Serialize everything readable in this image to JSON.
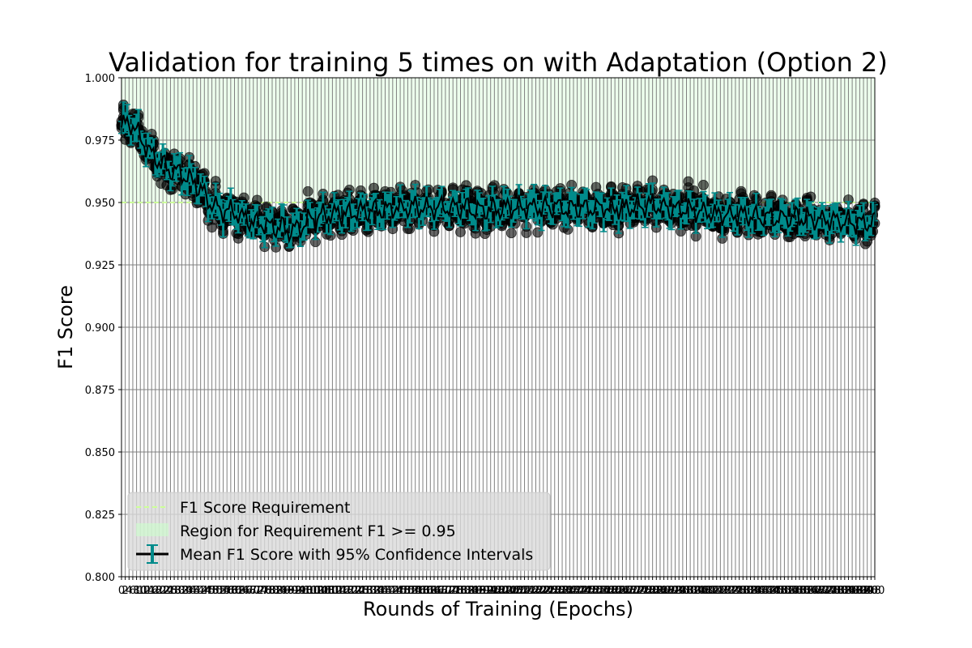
{
  "chart_data": {
    "type": "scatter",
    "title": "Validation for training 5 times on with Adaptation (Option 2)",
    "xlabel": "Rounds of Training (Epochs)",
    "ylabel": "F1 Score",
    "xlim": [
      0,
      400
    ],
    "ylim": [
      0.8,
      1.0
    ],
    "yticks": [
      0.8,
      0.825,
      0.85,
      0.875,
      0.9,
      0.925,
      0.95,
      0.975,
      1.0
    ],
    "ytick_labels": [
      "0.800",
      "0.825",
      "0.850",
      "0.875",
      "0.900",
      "0.925",
      "0.950",
      "0.975",
      "1.000"
    ],
    "xtick_step": 2,
    "grid": true,
    "legend_position": "lower-left",
    "requirement": {
      "name": "F1 Score Requirement",
      "value": 0.95,
      "color": "#ccff99"
    },
    "region": {
      "name": "Region for Requirement F1 >= 0.95",
      "from": 0.95,
      "to": 1.0,
      "color": "#ccffcc"
    },
    "mean_series": {
      "name": "Mean F1 Score with 95% Confidence Intervals",
      "line_color": "#000000",
      "ci_color": "#008b8b",
      "anchors": [
        [
          0,
          0.98
        ],
        [
          5,
          0.982
        ],
        [
          10,
          0.976
        ],
        [
          15,
          0.97
        ],
        [
          20,
          0.967
        ],
        [
          25,
          0.963
        ],
        [
          30,
          0.962
        ],
        [
          35,
          0.96
        ],
        [
          40,
          0.957
        ],
        [
          45,
          0.952
        ],
        [
          50,
          0.948
        ],
        [
          55,
          0.947
        ],
        [
          60,
          0.946
        ],
        [
          65,
          0.944
        ],
        [
          70,
          0.942
        ],
        [
          75,
          0.941
        ],
        [
          80,
          0.94
        ],
        [
          85,
          0.94
        ],
        [
          90,
          0.939
        ],
        [
          95,
          0.94
        ],
        [
          100,
          0.943
        ],
        [
          110,
          0.945
        ],
        [
          120,
          0.946
        ],
        [
          130,
          0.947
        ],
        [
          140,
          0.947
        ],
        [
          150,
          0.948
        ],
        [
          160,
          0.948
        ],
        [
          170,
          0.948
        ],
        [
          180,
          0.948
        ],
        [
          190,
          0.947
        ],
        [
          200,
          0.947
        ],
        [
          210,
          0.948
        ],
        [
          220,
          0.948
        ],
        [
          230,
          0.948
        ],
        [
          240,
          0.948
        ],
        [
          250,
          0.948
        ],
        [
          260,
          0.948
        ],
        [
          270,
          0.948
        ],
        [
          280,
          0.949
        ],
        [
          290,
          0.948
        ],
        [
          300,
          0.947
        ],
        [
          310,
          0.946
        ],
        [
          320,
          0.945
        ],
        [
          330,
          0.945
        ],
        [
          340,
          0.944
        ],
        [
          350,
          0.944
        ],
        [
          360,
          0.944
        ],
        [
          370,
          0.943
        ],
        [
          380,
          0.943
        ],
        [
          390,
          0.942
        ],
        [
          400,
          0.942
        ]
      ],
      "ci_half_width": 0.004
    },
    "runs": {
      "count": 5,
      "point_color": "#000000",
      "point_opacity": 0.6,
      "spread": 0.006
    }
  }
}
